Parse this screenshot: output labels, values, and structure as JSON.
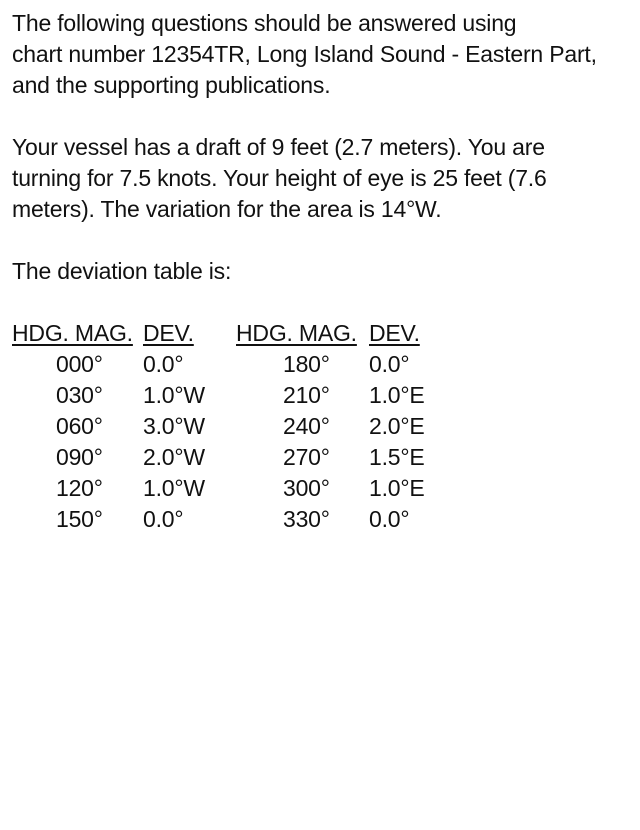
{
  "intro_lines": [
    "The following questions should be answered using",
    "chart number 12354TR, Long Island Sound - Eastern Part,",
    "and the supporting publications."
  ],
  "vessel_lines": [
    "Your vessel has a draft of 9 feet (2.7 meters). You are",
    "turning for 7.5 knots. Your height of eye is 25 feet (7.6",
    "meters). The variation for the area is 14°W."
  ],
  "deviation_heading": "The deviation table is:",
  "table": {
    "col_mag": "HDG. MAG.",
    "col_dev": "DEV.",
    "left_rows": [
      {
        "mag": "000°",
        "dev": "0.0°"
      },
      {
        "mag": "030°",
        "dev": "1.0°W"
      },
      {
        "mag": "060°",
        "dev": "3.0°W"
      },
      {
        "mag": "090°",
        "dev": "2.0°W"
      },
      {
        "mag": "120°",
        "dev": "1.0°W"
      },
      {
        "mag": "150°",
        "dev": "0.0°"
      }
    ],
    "right_rows": [
      {
        "mag": "180°",
        "dev": "0.0°"
      },
      {
        "mag": "210°",
        "dev": "1.0°E"
      },
      {
        "mag": "240°",
        "dev": "2.0°E"
      },
      {
        "mag": "270°",
        "dev": "1.5°E"
      },
      {
        "mag": "300°",
        "dev": "1.0°E"
      },
      {
        "mag": "330°",
        "dev": "0.0°"
      }
    ]
  }
}
